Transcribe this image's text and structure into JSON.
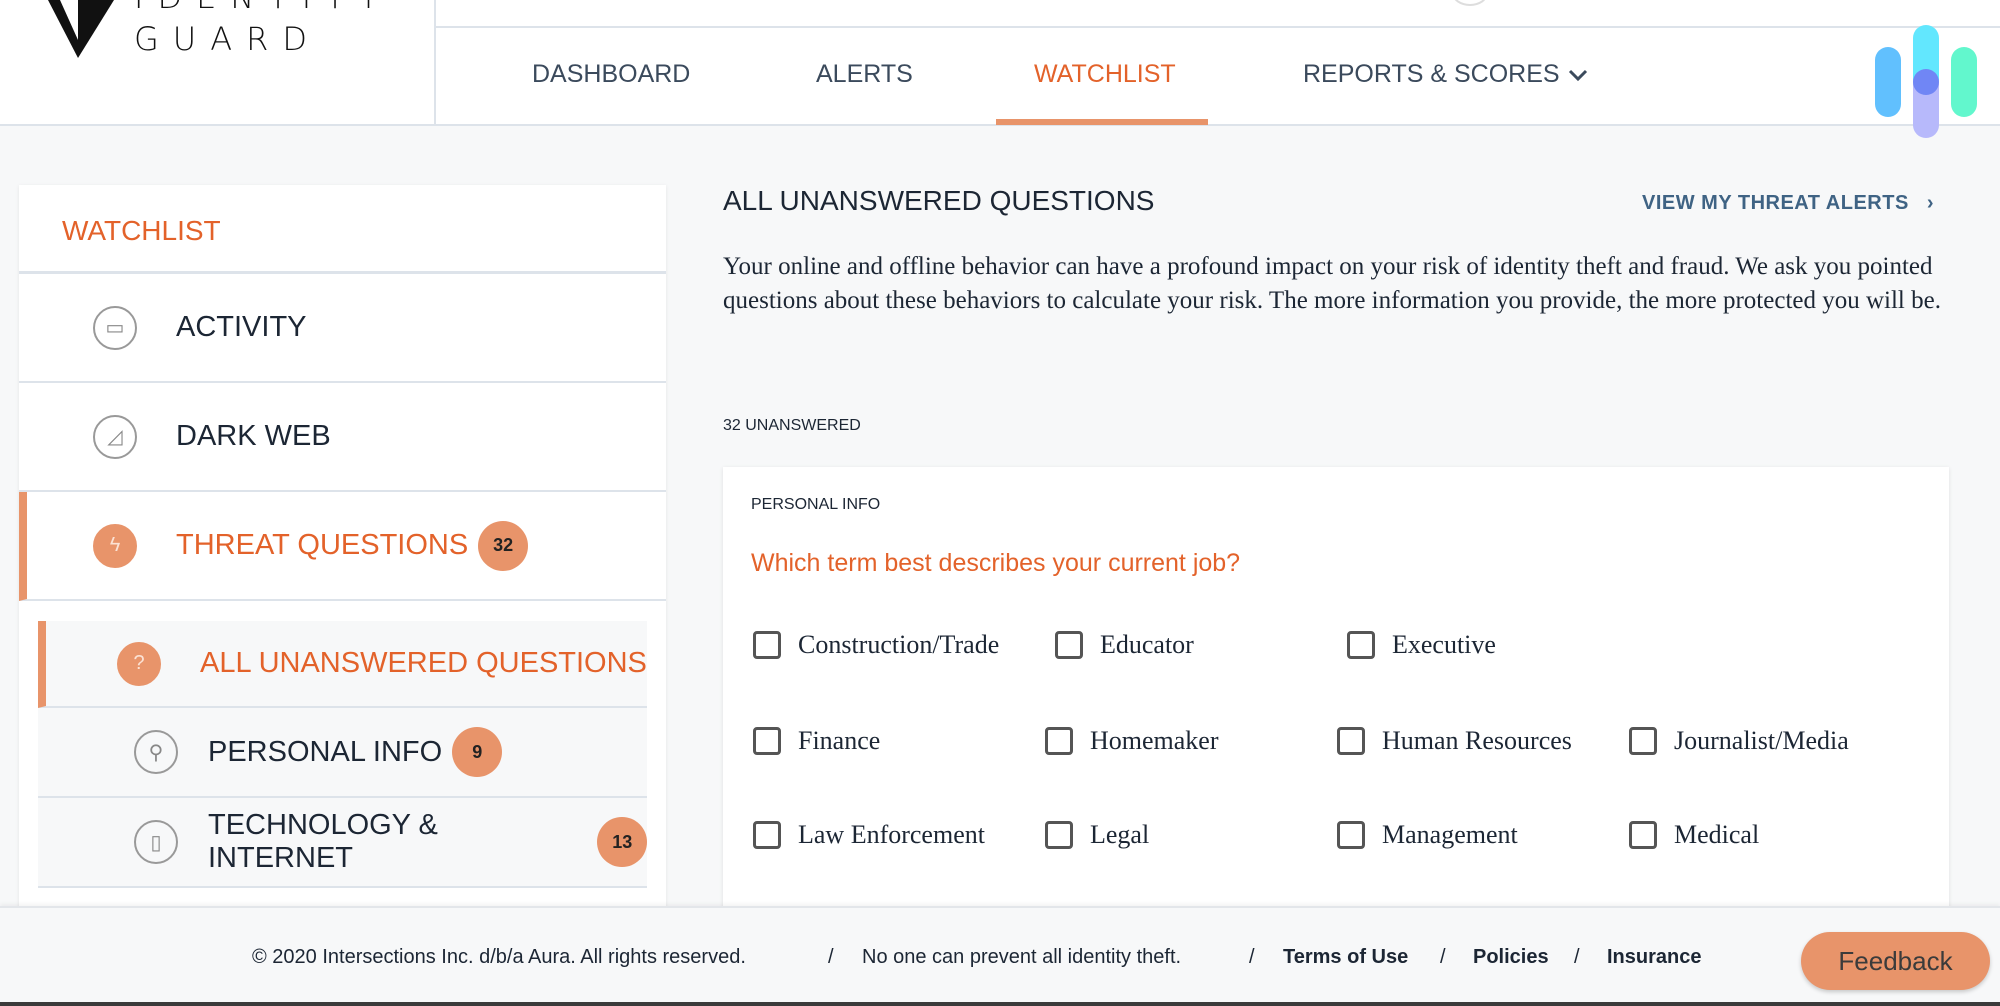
{
  "brand": {
    "logo_text_top": "IDENTITY",
    "logo_text_bottom": "GUARD"
  },
  "nav": {
    "items": [
      {
        "label": "DASHBOARD"
      },
      {
        "label": "ALERTS"
      },
      {
        "label": "WATCHLIST",
        "active": true
      },
      {
        "label": "REPORTS & SCORES"
      }
    ],
    "chevron": "chevron-down-icon"
  },
  "colors": {
    "accent": "#e3622a",
    "accent_fill": "#e8946a",
    "link": "#3f6384",
    "text": "#1c2634"
  },
  "sidebar": {
    "title": "WATCHLIST",
    "items": [
      {
        "label": "ACTIVITY",
        "icon": "glasses-icon"
      },
      {
        "label": "DARK WEB",
        "icon": "shark-fin-icon"
      },
      {
        "label": "THREAT QUESTIONS",
        "icon": "lightning-icon",
        "badge": "32",
        "active": true
      }
    ],
    "subitems": [
      {
        "label": "ALL UNANSWERED QUESTIONS",
        "icon": "question-icon",
        "active": true
      },
      {
        "label": "PERSONAL INFO",
        "icon": "person-icon",
        "badge": "9"
      },
      {
        "label": "TECHNOLOGY & INTERNET",
        "icon": "phone-icon",
        "badge": "13"
      }
    ]
  },
  "main": {
    "title": "ALL UNANSWERED QUESTIONS",
    "view_alerts": "VIEW MY THREAT ALERTS",
    "intro": "Your online and offline behavior can have a profound impact on your risk of identity theft and fraud. We ask you pointed questions about these behaviors to calculate your risk. The more information you provide, the more protected you will be.",
    "unanswered": "32 UNANSWERED",
    "card": {
      "section": "PERSONAL INFO",
      "question": "Which term best describes your current job?",
      "options": [
        "Construction/Trade",
        "Educator",
        "Executive",
        "Finance",
        "Homemaker",
        "Human Resources",
        "Journalist/Media",
        "Law Enforcement",
        "Legal",
        "Management",
        "Medical"
      ]
    }
  },
  "footer": {
    "copyright": "© 2020 Intersections Inc. d/b/a Aura. All rights reserved.",
    "disclaimer": "No one can prevent all identity theft.",
    "sep": "/",
    "links": [
      "Terms of Use",
      "Policies",
      "Insurance"
    ],
    "feedback": "Feedback"
  }
}
